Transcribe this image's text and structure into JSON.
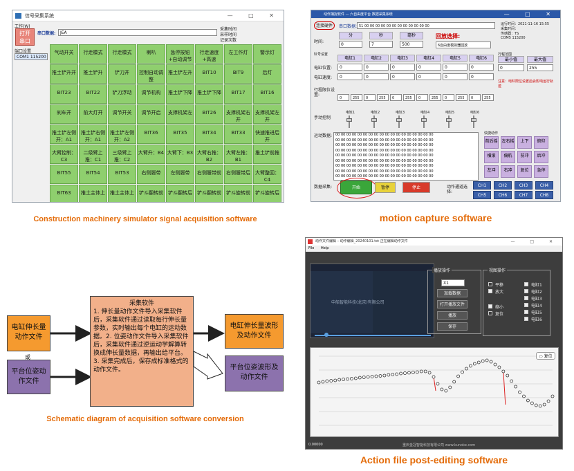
{
  "captions": {
    "tl": "Construction machinery simulator signal acquisition software",
    "tr": "motion capture software",
    "bl": "Schematic diagram of acquisition software conversion",
    "br": "Action file post-editing software"
  },
  "acq": {
    "title": "信号采集系统",
    "menu": "工作(W)",
    "open_button": "打开\n串口",
    "serial_label": "串口数据:",
    "serial_value": "JEA",
    "status_lines": [
      "采集时间",
      "采样时间",
      "记录次数"
    ],
    "port_label": "端口设置",
    "port_value": "COM1 115200",
    "cells": [
      [
        "气动开关",
        "行走模式",
        "行走模式",
        "喇叭",
        "急停按钮+自动调节",
        "行走速度+高速",
        "左工作灯",
        "警示灯"
      ],
      [
        "推土铲升开",
        "推土铲升",
        "铲刀开",
        "控制自动调整",
        "推土铲左升",
        "BIT10",
        "BIT9",
        "后灯"
      ],
      [
        "BIT23",
        "BIT22",
        "铲刀浮动",
        "调节机构",
        "推土铲下降",
        "推土铲下降",
        "BIT17",
        "BIT16"
      ],
      [
        "刹车开",
        "前大灯开",
        "调节开关",
        "调节开启",
        "支撑机架左",
        "BIT26",
        "支撑机架右开",
        "支撑机架左开"
      ],
      [
        "推土铲左侧开：A1",
        "推土铲右侧开：A1",
        "推土铲左侧开：A2",
        "BIT36",
        "BIT35",
        "BIT34",
        "BIT33",
        "快速推进后开"
      ],
      [
        "大臂控制：C3",
        "二级臂上推：C1",
        "三级臂上推：C2",
        "大臂升：B4",
        "大臂下：B3",
        "大臂右推：B2",
        "大臂左推：B1",
        "推土铲前推"
      ],
      [
        "BIT55",
        "BIT54",
        "BIT53",
        "右侧履带",
        "左侧履带",
        "右侧履带前",
        "右侧履带后",
        "大臂整回：C4"
      ],
      [
        "BIT63",
        "推土主体上",
        "推土主体上",
        "铲斗翻转前",
        "铲斗翻转后",
        "铲斗翻转前",
        "铲斗旋转前",
        "铲斗旋转后"
      ]
    ]
  },
  "mocap": {
    "title": "动作捕捉软件 — 六自由度平台 数据采集系统",
    "connect_button": "连接硬件",
    "serial_label": "串口数据:",
    "serial_value": "51 00 00 00 00 00 00 00 00 00 00 00 00",
    "info_lines": [
      "运行时间：2021-11-16 15:55",
      "采集时间：",
      "传感器：TS",
      "COM5 115200"
    ],
    "time_label": "时间:",
    "time_headers": [
      "分",
      "秒",
      "毫秒"
    ],
    "time_values": [
      "0",
      "7",
      "500"
    ],
    "mode_label": "回放选择:",
    "mode_value": "6自由度模拟器回放",
    "cyl_label": "缸号设置",
    "cyl_headers": [
      "电缸1",
      "电缸2",
      "电缸3",
      "电缸4",
      "电缸5",
      "电缸6"
    ],
    "rows": [
      {
        "label": "电缸位置:",
        "values": [
          "0",
          "0",
          "0",
          "0",
          "0",
          "0"
        ]
      },
      {
        "label": "电缸速度:",
        "values": [
          "0",
          "0",
          "0",
          "0",
          "0",
          "0"
        ]
      }
    ],
    "range_label": "行程范围",
    "range_headers": [
      "最小值",
      "最大值"
    ],
    "range_values": [
      "0",
      "255"
    ],
    "limit_label": "行程限位设置:",
    "limit_values": [
      "0",
      "255",
      "0",
      "255",
      "0",
      "255",
      "0",
      "255",
      "0",
      "255",
      "0",
      "255"
    ],
    "note": "注意：电缸限位设置后会影响运行轨迹",
    "slider_label": "手动控制",
    "slider_caps": [
      "电缸1",
      "电缸2",
      "电缸3",
      "电缸4",
      "电缸5",
      "电缸6"
    ],
    "buffer_label": "运动数据:",
    "buffer_line": "00 00 00 00 00 00 00 00 00 00 00 00 00 00 00 00 00 00",
    "pad_label": "快捷动作",
    "pads": [
      "前后摇",
      "左右摇",
      "上下",
      "俯仰",
      "横滚",
      "偏航",
      "前冲",
      "后冲",
      "左冲",
      "右冲",
      "复位",
      "急停"
    ],
    "capture_label": "数据采集:",
    "start_button": "开始",
    "pause_button": "暂停",
    "stop_button": "停止",
    "chan_label": "动作通道选择:",
    "chan_buttons": [
      "CH1",
      "CH2",
      "CH3",
      "CH4",
      "CH5",
      "CH6",
      "CH7",
      "CH8"
    ]
  },
  "diagram": {
    "in1": "电缸伸长量动作文件",
    "or": "或",
    "in2": "平台位姿动作文件",
    "center_title": "采集软件",
    "center_body": "1. 伸长量动作文件导入采集软件后，采集软件通过读取每行伸长量参数，实时输出每个电缸的运动数据。2. 位姿动作文件导入采集软件后，采集软件通过逆运动学解算转换成伸长量数据，再输出给平台。3. 采集完成后，保存成标准格式的动作文件。",
    "out1": "电缸伸长量波形及动作文件",
    "out2": "平台位姿波形及动作文件"
  },
  "editor": {
    "title": "动作文件编辑 – 动作编辑_20240101.txt  正在编辑动作文件",
    "menu": [
      "File",
      "Help"
    ],
    "video_overlay": "中船智能科技(北京)有限公司",
    "play_group": "播放操作",
    "play_select": "X1",
    "play_buttons": [
      "加载数据",
      "打开播放文件",
      "播放",
      "保存"
    ],
    "view_group": "视图操作",
    "view_checks": [
      "平移",
      "放大",
      "缩小",
      "复位"
    ],
    "axis_checks": [
      "电缸1",
      "电缸2",
      "电缸3",
      "电缸4",
      "电缸5",
      "电缸6"
    ],
    "chart_button": "复位",
    "status": "0.00000",
    "footer": "重庆金冠智能科技有限公司 www.kunoke.com"
  },
  "chart_data": {
    "type": "scatter",
    "title": "",
    "xlabel": "",
    "ylabel": "",
    "series": [
      {
        "values": [
          0.62,
          0.63,
          0.64,
          0.645,
          0.65,
          0.66,
          0.665,
          0.67,
          0.675,
          0.68,
          0.69,
          0.695,
          0.7,
          0.705,
          0.71,
          0.715,
          0.72,
          0.73,
          0.735,
          0.74,
          0.75,
          0.755,
          0.76,
          0.765,
          0.77,
          0.78,
          0.78,
          0.76,
          0.7,
          0.6,
          0.52,
          0.5,
          0.55,
          0.63,
          0.71,
          0.77,
          0.82,
          0.86,
          0.89,
          0.91,
          0.93,
          0.94,
          0.92,
          0.88,
          0.84,
          0.78,
          0.72,
          0.64,
          0.56,
          0.48,
          0.42,
          0.36,
          0.32,
          0.29,
          0.28,
          0.3,
          0.35,
          0.42
        ]
      }
    ],
    "outliers": [
      0.5,
      0.3
    ]
  }
}
